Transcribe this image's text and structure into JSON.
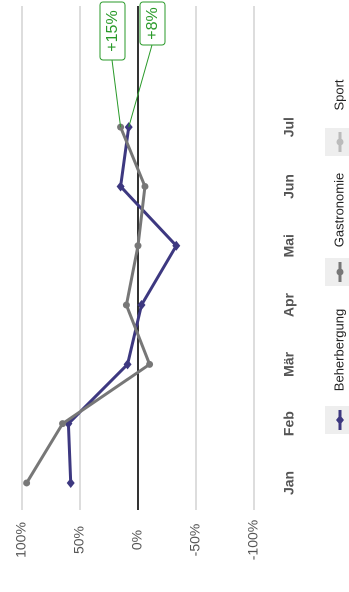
{
  "chart_data": {
    "type": "line",
    "categories": [
      "Jan",
      "Feb",
      "Mär",
      "Apr",
      "Mai",
      "Jun",
      "Jul"
    ],
    "series": [
      {
        "name": "Beherbergung",
        "color": "#3d3880",
        "marker": "diamond",
        "values": [
          58,
          60,
          9,
          -3,
          -33,
          15,
          8
        ]
      },
      {
        "name": "Gastronomie",
        "color": "#777777",
        "marker": "circle",
        "values": [
          96,
          65,
          -10,
          10,
          0,
          -6,
          15
        ]
      },
      {
        "name": "Sport",
        "color": "#bbbbbb",
        "marker": "circle",
        "values": [
          null,
          null,
          null,
          null,
          null,
          null,
          null
        ]
      }
    ],
    "ylim": [
      -100,
      100
    ],
    "yticks": [
      {
        "value": -100,
        "label": "-100%"
      },
      {
        "value": -50,
        "label": "-50%"
      },
      {
        "value": 0,
        "label": "0%"
      },
      {
        "value": 50,
        "label": "50%"
      },
      {
        "value": 100,
        "label": "100%"
      }
    ],
    "grid": true,
    "legend": "bottom",
    "annotations": [
      "+15%",
      "+8%"
    ],
    "annotation_color": "#2a9a2a"
  }
}
